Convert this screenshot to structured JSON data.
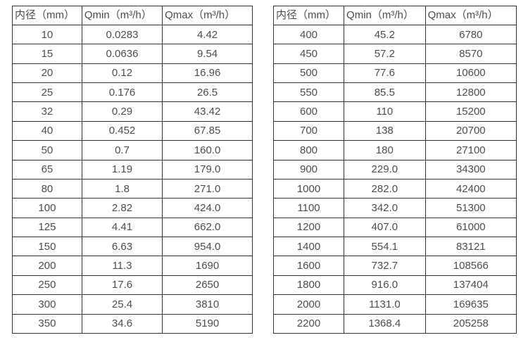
{
  "colors": {
    "background": "#ffffff",
    "border": "#333333",
    "text": "#4d4d4d"
  },
  "chart_data": [
    {
      "type": "table",
      "title": "",
      "columns": [
        "内径（mm）",
        "Qmin（m³/h）",
        "Qmax（m³/h）"
      ],
      "rows": [
        [
          "10",
          "0.0283",
          "4.42"
        ],
        [
          "15",
          "0.0636",
          "9.54"
        ],
        [
          "20",
          "0.12",
          "16.96"
        ],
        [
          "25",
          "0.176",
          "26.5"
        ],
        [
          "32",
          "0.29",
          "43.42"
        ],
        [
          "40",
          "0.452",
          "67.85"
        ],
        [
          "50",
          "0.7",
          "160.0"
        ],
        [
          "65",
          "1.19",
          "179.0"
        ],
        [
          "80",
          "1.8",
          "271.0"
        ],
        [
          "100",
          "2.82",
          "424.0"
        ],
        [
          "125",
          "4.41",
          "662.0"
        ],
        [
          "150",
          "6.63",
          "954.0"
        ],
        [
          "200",
          "11.3",
          "1690"
        ],
        [
          "250",
          "17.6",
          "2650"
        ],
        [
          "300",
          "25.4",
          "3810"
        ],
        [
          "350",
          "34.6",
          "5190"
        ]
      ]
    },
    {
      "type": "table",
      "title": "",
      "columns": [
        "内径（mm）",
        "Qmin（m³/h）",
        "Qmax（m³/h）"
      ],
      "rows": [
        [
          "400",
          "45.2",
          "6780"
        ],
        [
          "450",
          "57.2",
          "8570"
        ],
        [
          "500",
          "77.6",
          "10600"
        ],
        [
          "550",
          "85.5",
          "12800"
        ],
        [
          "600",
          "110",
          "15200"
        ],
        [
          "700",
          "138",
          "20700"
        ],
        [
          "800",
          "180",
          "27100"
        ],
        [
          "900",
          "229.0",
          "34300"
        ],
        [
          "1000",
          "282.0",
          "42400"
        ],
        [
          "1100",
          "342.0",
          "51300"
        ],
        [
          "1200",
          "407.0",
          "61000"
        ],
        [
          "1400",
          "554.1",
          "83121"
        ],
        [
          "1600",
          "732.7",
          "108566"
        ],
        [
          "1800",
          "916.0",
          "137404"
        ],
        [
          "2000",
          "1131.0",
          "169635"
        ],
        [
          "2200",
          "1368.4",
          "205258"
        ]
      ]
    }
  ]
}
